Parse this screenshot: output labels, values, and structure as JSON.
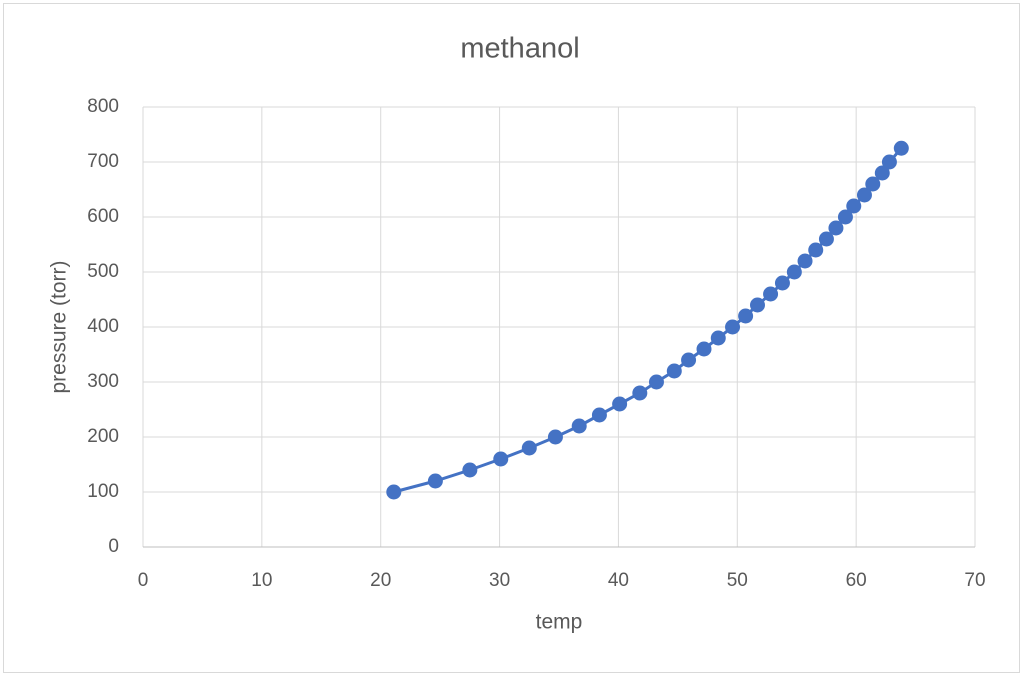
{
  "chart_data": {
    "type": "scatter",
    "title": "methanol",
    "x_label": "temp",
    "y_label": "pressure (torr)",
    "series": [
      {
        "color": "#4472c4",
        "x": [
          21.1,
          24.6,
          27.5,
          30.1,
          32.5,
          34.7,
          36.7,
          38.4,
          40.1,
          41.8,
          43.2,
          44.7,
          45.9,
          47.2,
          48.4,
          49.6,
          50.7,
          51.7,
          52.8,
          53.8,
          54.8,
          55.7,
          56.6,
          57.5,
          58.3,
          59.1,
          59.8,
          60.7,
          61.4,
          62.2,
          62.8,
          63.8
        ],
        "values": [
          100,
          120,
          140,
          160,
          180,
          200,
          220,
          240,
          260,
          280,
          300,
          320,
          340,
          360,
          380,
          400,
          420,
          440,
          460,
          480,
          500,
          520,
          540,
          560,
          580,
          600,
          620,
          640,
          660,
          680,
          700,
          725
        ]
      }
    ],
    "xlim": [
      0,
      70
    ],
    "xticks": [
      0,
      10,
      20,
      30,
      40,
      50,
      60,
      70
    ],
    "ylim": [
      0,
      800
    ],
    "yticks": [
      0,
      100,
      200,
      300,
      400,
      500,
      600,
      700,
      800
    ],
    "grid": true
  }
}
